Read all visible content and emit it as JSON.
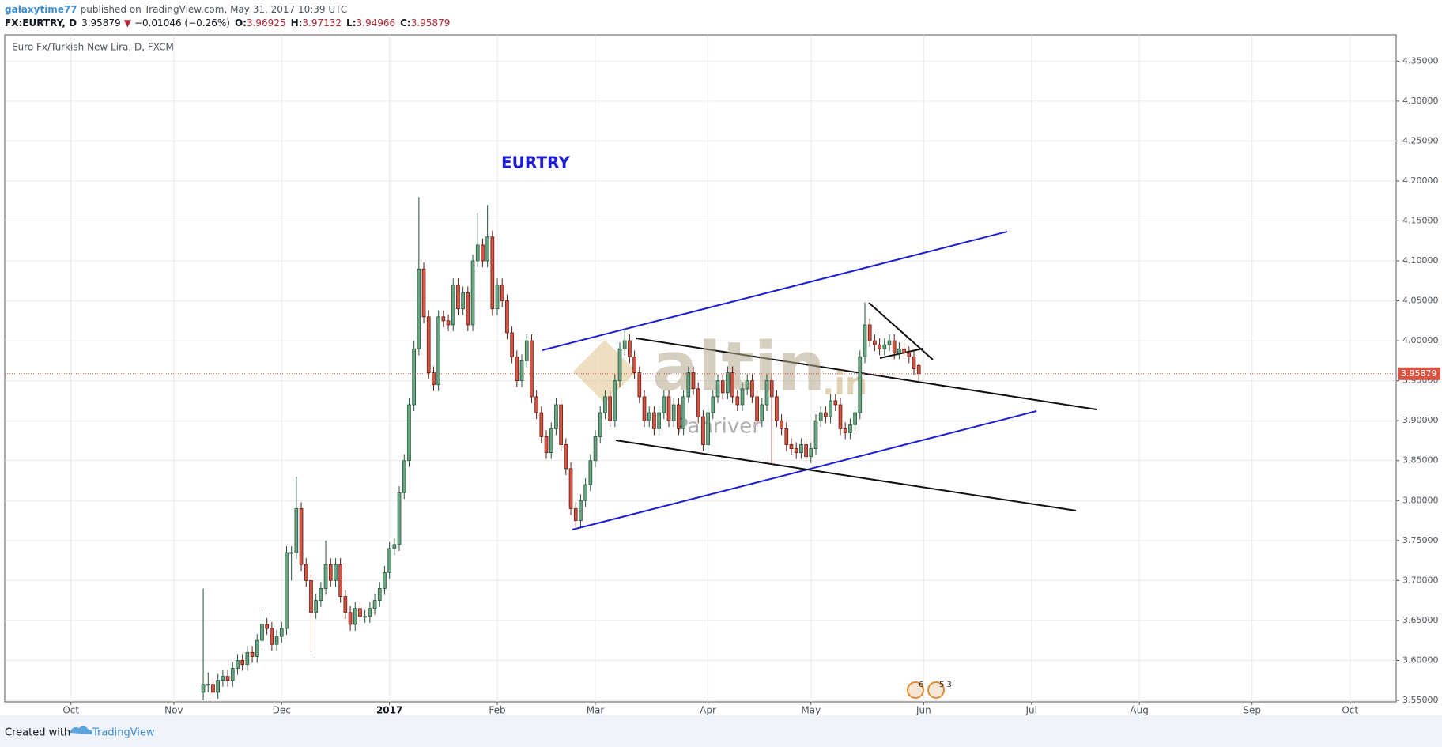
{
  "header": {
    "user": "galaxytime77",
    "published": "published on TradingView.com, May 31, 2017 10:39 UTC",
    "symbol": "FX:EURTRY, D",
    "last": "3.95879",
    "arrow": "▼",
    "change": "−0.01046 (−0.26%)",
    "ohlc": [
      {
        "label": "O:",
        "value": "3.96925"
      },
      {
        "label": "H:",
        "value": "3.97132"
      },
      {
        "label": "L:",
        "value": "3.94966"
      },
      {
        "label": "C:",
        "value": "3.95879"
      }
    ]
  },
  "footer": {
    "created": "Created with",
    "brand": "TradingView"
  },
  "chart_data": {
    "type": "candlestick",
    "title": "Euro Fx/Turkish New Lira, D, FXCM",
    "annotation": "EURTRY",
    "watermark": {
      "brand": "altin",
      "suffix": ".in",
      "sub": "Panriver"
    },
    "events": [
      "6",
      "5 3"
    ],
    "up_color": "#6ba583",
    "down_color": "#d75442",
    "grid": true,
    "last_price_line": true,
    "xlim": [
      -13.5,
      270.4
    ],
    "ylim": [
      3.548,
      4.383
    ],
    "xticks": [
      {
        "value": 0,
        "label": "Oct"
      },
      {
        "value": 21,
        "label": "Nov"
      },
      {
        "value": 43,
        "label": "Dec"
      },
      {
        "value": 65,
        "label": "2017"
      },
      {
        "value": 87,
        "label": "Feb"
      },
      {
        "value": 107,
        "label": "Mar"
      },
      {
        "value": 130,
        "label": "Apr"
      },
      {
        "value": 151,
        "label": "May"
      },
      {
        "value": 174,
        "label": "Jun"
      },
      {
        "value": 196,
        "label": "Jul"
      },
      {
        "value": 218,
        "label": "Aug"
      },
      {
        "value": 241,
        "label": "Sep"
      },
      {
        "value": 261,
        "label": "Oct"
      }
    ],
    "yticks": [
      {
        "value": 3.55,
        "label": "3.55000"
      },
      {
        "value": 3.6,
        "label": "3.60000"
      },
      {
        "value": 3.65,
        "label": "3.65000"
      },
      {
        "value": 3.7,
        "label": "3.70000"
      },
      {
        "value": 3.75,
        "label": "3.75000"
      },
      {
        "value": 3.8,
        "label": "3.80000"
      },
      {
        "value": 3.85,
        "label": "3.85000"
      },
      {
        "value": 3.9,
        "label": "3.90000"
      },
      {
        "value": 3.95,
        "label": "3.95000"
      },
      {
        "value": 4.0,
        "label": "4.00000"
      },
      {
        "value": 4.05,
        "label": "4.05000"
      },
      {
        "value": 4.1,
        "label": "4.10000"
      },
      {
        "value": 4.15,
        "label": "4.15000"
      },
      {
        "value": 4.2,
        "label": "4.20000"
      },
      {
        "value": 4.25,
        "label": "4.25000"
      },
      {
        "value": 4.3,
        "label": "4.30000"
      },
      {
        "value": 4.35,
        "label": "4.35000"
      }
    ],
    "x": [
      27,
      28,
      29,
      30,
      31,
      32,
      33,
      34,
      35,
      36,
      37,
      38,
      39,
      40,
      41,
      42,
      43,
      44,
      45,
      46,
      47,
      48,
      49,
      50,
      51,
      52,
      53,
      54,
      55,
      56,
      57,
      58,
      59,
      60,
      61,
      62,
      63,
      64,
      65,
      66,
      67,
      68,
      69,
      70,
      71,
      72,
      73,
      74,
      75,
      76,
      77,
      78,
      79,
      80,
      81,
      82,
      83,
      84,
      85,
      86,
      87,
      88,
      89,
      90,
      91,
      92,
      93,
      94,
      95,
      96,
      97,
      98,
      99,
      100,
      101,
      102,
      103,
      104,
      105,
      106,
      107,
      108,
      109,
      110,
      111,
      112,
      113,
      114,
      115,
      116,
      117,
      118,
      119,
      120,
      121,
      122,
      123,
      124,
      125,
      126,
      127,
      128,
      129,
      130,
      131,
      132,
      133,
      134,
      135,
      136,
      137,
      138,
      139,
      140,
      141,
      142,
      143,
      144,
      145,
      146,
      147,
      148,
      149,
      150,
      151,
      152,
      153,
      154,
      155,
      156,
      157,
      158,
      159,
      160,
      161,
      162,
      163,
      164,
      165,
      166,
      167,
      168,
      169,
      170,
      171,
      172,
      173
    ],
    "ohlc": [
      [
        3.56,
        3.69,
        3.55,
        3.57
      ],
      [
        3.57,
        3.585,
        3.56,
        3.57
      ],
      [
        3.57,
        3.578,
        3.552,
        3.56
      ],
      [
        3.56,
        3.583,
        3.552,
        3.575
      ],
      [
        3.575,
        3.588,
        3.567,
        3.58
      ],
      [
        3.58,
        3.588,
        3.567,
        3.575
      ],
      [
        3.575,
        3.598,
        3.567,
        3.59
      ],
      [
        3.59,
        3.608,
        3.582,
        3.6
      ],
      [
        3.6,
        3.608,
        3.587,
        3.595
      ],
      [
        3.595,
        3.618,
        3.587,
        3.61
      ],
      [
        3.61,
        3.618,
        3.597,
        3.605
      ],
      [
        3.605,
        3.633,
        3.597,
        3.625
      ],
      [
        3.625,
        3.66,
        3.617,
        3.645
      ],
      [
        3.645,
        3.653,
        3.632,
        3.64
      ],
      [
        3.64,
        3.648,
        3.612,
        3.62
      ],
      [
        3.62,
        3.638,
        3.612,
        3.63
      ],
      [
        3.63,
        3.648,
        3.622,
        3.64
      ],
      [
        3.64,
        3.743,
        3.632,
        3.735
      ],
      [
        3.735,
        3.743,
        3.7,
        3.735
      ],
      [
        3.735,
        3.83,
        3.727,
        3.79
      ],
      [
        3.79,
        3.798,
        3.712,
        3.72
      ],
      [
        3.72,
        3.728,
        3.692,
        3.7
      ],
      [
        3.7,
        3.708,
        3.61,
        3.66
      ],
      [
        3.66,
        3.683,
        3.652,
        3.675
      ],
      [
        3.675,
        3.698,
        3.667,
        3.69
      ],
      [
        3.69,
        3.75,
        3.682,
        3.72
      ],
      [
        3.72,
        3.728,
        3.692,
        3.7
      ],
      [
        3.7,
        3.728,
        3.692,
        3.72
      ],
      [
        3.72,
        3.728,
        3.672,
        3.68
      ],
      [
        3.68,
        3.688,
        3.652,
        3.66
      ],
      [
        3.66,
        3.668,
        3.637,
        3.645
      ],
      [
        3.645,
        3.673,
        3.637,
        3.665
      ],
      [
        3.665,
        3.673,
        3.647,
        3.655
      ],
      [
        3.655,
        3.663,
        3.647,
        3.655
      ],
      [
        3.655,
        3.673,
        3.647,
        3.665
      ],
      [
        3.665,
        3.683,
        3.657,
        3.675
      ],
      [
        3.675,
        3.698,
        3.667,
        3.69
      ],
      [
        3.69,
        3.718,
        3.682,
        3.71
      ],
      [
        3.71,
        3.748,
        3.702,
        3.74
      ],
      [
        3.74,
        3.753,
        3.732,
        3.745
      ],
      [
        3.745,
        3.818,
        3.737,
        3.81
      ],
      [
        3.81,
        3.858,
        3.802,
        3.85
      ],
      [
        3.85,
        3.928,
        3.842,
        3.92
      ],
      [
        3.92,
        4.0,
        3.912,
        3.99
      ],
      [
        3.99,
        4.18,
        3.982,
        4.09
      ],
      [
        4.09,
        4.098,
        4.022,
        4.03
      ],
      [
        4.03,
        4.038,
        3.952,
        3.96
      ],
      [
        3.96,
        3.968,
        3.937,
        3.945
      ],
      [
        3.945,
        4.038,
        3.937,
        4.03
      ],
      [
        4.03,
        4.038,
        4.017,
        4.025
      ],
      [
        4.025,
        4.033,
        4.012,
        4.02
      ],
      [
        4.02,
        4.078,
        4.012,
        4.07
      ],
      [
        4.07,
        4.078,
        4.032,
        4.04
      ],
      [
        4.04,
        4.068,
        4.032,
        4.06
      ],
      [
        4.06,
        4.068,
        4.012,
        4.02
      ],
      [
        4.02,
        4.108,
        4.012,
        4.1
      ],
      [
        4.1,
        4.16,
        4.092,
        4.12
      ],
      [
        4.12,
        4.128,
        4.092,
        4.1
      ],
      [
        4.1,
        4.17,
        4.092,
        4.13
      ],
      [
        4.13,
        4.138,
        4.032,
        4.04
      ],
      [
        4.04,
        4.078,
        4.032,
        4.07
      ],
      [
        4.07,
        4.078,
        4.042,
        4.05
      ],
      [
        4.05,
        4.058,
        4.002,
        4.01
      ],
      [
        4.01,
        4.018,
        3.972,
        3.98
      ],
      [
        3.98,
        3.988,
        3.942,
        3.95
      ],
      [
        3.95,
        3.983,
        3.942,
        3.975
      ],
      [
        3.975,
        4.008,
        3.967,
        4.0
      ],
      [
        4.0,
        4.008,
        3.922,
        3.93
      ],
      [
        3.93,
        3.938,
        3.902,
        3.91
      ],
      [
        3.91,
        3.918,
        3.872,
        3.88
      ],
      [
        3.88,
        3.888,
        3.852,
        3.86
      ],
      [
        3.86,
        3.898,
        3.852,
        3.89
      ],
      [
        3.89,
        3.928,
        3.882,
        3.92
      ],
      [
        3.92,
        3.928,
        3.862,
        3.87
      ],
      [
        3.87,
        3.878,
        3.832,
        3.84
      ],
      [
        3.84,
        3.848,
        3.782,
        3.79
      ],
      [
        3.79,
        3.798,
        3.767,
        3.775
      ],
      [
        3.775,
        3.808,
        3.767,
        3.8
      ],
      [
        3.8,
        3.828,
        3.792,
        3.82
      ],
      [
        3.82,
        3.858,
        3.812,
        3.85
      ],
      [
        3.85,
        3.888,
        3.842,
        3.88
      ],
      [
        3.88,
        3.918,
        3.872,
        3.91
      ],
      [
        3.91,
        3.938,
        3.902,
        3.93
      ],
      [
        3.93,
        3.938,
        3.892,
        3.9
      ],
      [
        3.9,
        3.958,
        3.892,
        3.95
      ],
      [
        3.95,
        3.998,
        3.942,
        3.99
      ],
      [
        3.99,
        4.015,
        3.982,
        4.0
      ],
      [
        4.0,
        4.008,
        3.972,
        3.98
      ],
      [
        3.98,
        3.988,
        3.952,
        3.96
      ],
      [
        3.96,
        3.968,
        3.922,
        3.93
      ],
      [
        3.93,
        3.938,
        3.892,
        3.9
      ],
      [
        3.9,
        3.918,
        3.892,
        3.91
      ],
      [
        3.91,
        3.918,
        3.882,
        3.89
      ],
      [
        3.89,
        3.918,
        3.882,
        3.91
      ],
      [
        3.91,
        3.938,
        3.902,
        3.93
      ],
      [
        3.93,
        3.938,
        3.892,
        3.9
      ],
      [
        3.9,
        3.928,
        3.892,
        3.92
      ],
      [
        3.92,
        3.928,
        3.882,
        3.89
      ],
      [
        3.89,
        3.938,
        3.882,
        3.93
      ],
      [
        3.93,
        3.968,
        3.922,
        3.96
      ],
      [
        3.96,
        3.968,
        3.932,
        3.94
      ],
      [
        3.94,
        3.948,
        3.897,
        3.905
      ],
      [
        3.905,
        3.913,
        3.862,
        3.87
      ],
      [
        3.87,
        3.918,
        3.86,
        3.91
      ],
      [
        3.91,
        3.938,
        3.902,
        3.93
      ],
      [
        3.93,
        3.958,
        3.922,
        3.95
      ],
      [
        3.95,
        3.958,
        3.927,
        3.935
      ],
      [
        3.935,
        3.968,
        3.927,
        3.96
      ],
      [
        3.96,
        3.968,
        3.922,
        3.93
      ],
      [
        3.93,
        3.938,
        3.912,
        3.92
      ],
      [
        3.92,
        3.948,
        3.912,
        3.94
      ],
      [
        3.94,
        3.958,
        3.932,
        3.95
      ],
      [
        3.95,
        3.958,
        3.922,
        3.93
      ],
      [
        3.93,
        3.938,
        3.892,
        3.9
      ],
      [
        3.9,
        3.928,
        3.892,
        3.92
      ],
      [
        3.92,
        3.958,
        3.912,
        3.95
      ],
      [
        3.95,
        3.958,
        3.845,
        3.93
      ],
      [
        3.93,
        3.938,
        3.892,
        3.9
      ],
      [
        3.9,
        3.908,
        3.882,
        3.89
      ],
      [
        3.89,
        3.898,
        3.862,
        3.87
      ],
      [
        3.87,
        3.878,
        3.857,
        3.865
      ],
      [
        3.865,
        3.873,
        3.852,
        3.86
      ],
      [
        3.86,
        3.878,
        3.852,
        3.87
      ],
      [
        3.87,
        3.878,
        3.847,
        3.855
      ],
      [
        3.855,
        3.873,
        3.847,
        3.865
      ],
      [
        3.865,
        3.908,
        3.857,
        3.9
      ],
      [
        3.9,
        3.918,
        3.892,
        3.91
      ],
      [
        3.91,
        3.918,
        3.897,
        3.905
      ],
      [
        3.905,
        3.933,
        3.897,
        3.925
      ],
      [
        3.925,
        3.933,
        3.912,
        3.92
      ],
      [
        3.92,
        3.928,
        3.882,
        3.89
      ],
      [
        3.89,
        3.898,
        3.877,
        3.885
      ],
      [
        3.885,
        3.903,
        3.877,
        3.895
      ],
      [
        3.895,
        3.918,
        3.887,
        3.91
      ],
      [
        3.91,
        3.988,
        3.902,
        3.98
      ],
      [
        3.98,
        4.048,
        3.972,
        4.02
      ],
      [
        4.02,
        4.028,
        3.992,
        4.0
      ],
      [
        4.0,
        4.008,
        3.987,
        3.995
      ],
      [
        3.995,
        4.003,
        3.982,
        3.99
      ],
      [
        3.99,
        4.003,
        3.982,
        3.995
      ],
      [
        3.995,
        4.008,
        3.987,
        4.0
      ],
      [
        4.0,
        4.008,
        3.977,
        3.985
      ],
      [
        3.985,
        3.998,
        3.977,
        3.99
      ],
      [
        3.99,
        3.998,
        3.977,
        3.985
      ],
      [
        3.985,
        3.993,
        3.972,
        3.98
      ],
      [
        3.98,
        3.988,
        3.957,
        3.965
      ],
      [
        3.96925,
        3.97132,
        3.94966,
        3.95879
      ]
    ]
  }
}
